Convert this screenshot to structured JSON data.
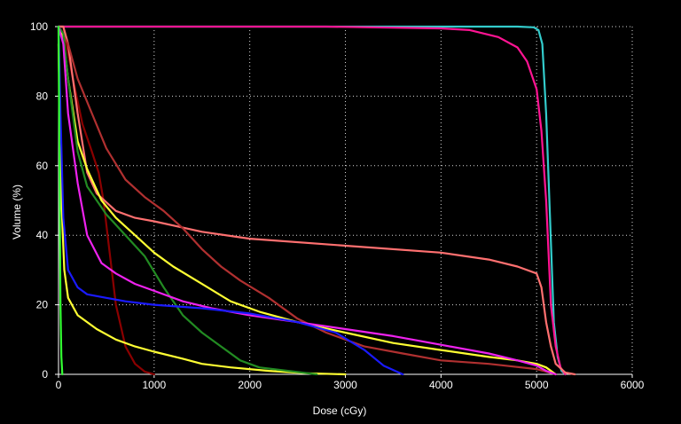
{
  "chart_data": {
    "type": "line",
    "title": "",
    "xlabel": "Dose (cGy)",
    "ylabel": "Volume (%)",
    "xlim": [
      0,
      6000
    ],
    "ylim": [
      0,
      100
    ],
    "xticks": [
      0,
      1000,
      2000,
      3000,
      4000,
      5000,
      6000
    ],
    "yticks": [
      0,
      20,
      40,
      60,
      80,
      100
    ],
    "grid": true,
    "legend": "none",
    "background": "#000000",
    "series": [
      {
        "color": "#33cccc",
        "points": [
          [
            0,
            100
          ],
          [
            4800,
            100
          ],
          [
            4970,
            99.8
          ],
          [
            5020,
            99
          ],
          [
            5060,
            95
          ],
          [
            5100,
            75
          ],
          [
            5140,
            45
          ],
          [
            5180,
            15
          ],
          [
            5220,
            5
          ],
          [
            5260,
            1
          ],
          [
            5300,
            0
          ]
        ]
      },
      {
        "color": "#8b0000",
        "points": [
          [
            0,
            100
          ],
          [
            50,
            100
          ],
          [
            150,
            85
          ],
          [
            250,
            72
          ],
          [
            350,
            64
          ],
          [
            420,
            58
          ],
          [
            470,
            50
          ],
          [
            530,
            36
          ],
          [
            600,
            20
          ],
          [
            700,
            8
          ],
          [
            800,
            3
          ],
          [
            900,
            0.8
          ],
          [
            1000,
            0
          ]
        ]
      },
      {
        "color": "#ff1493",
        "points": [
          [
            0,
            100
          ],
          [
            2800,
            100
          ],
          [
            4000,
            99.5
          ],
          [
            4300,
            99
          ],
          [
            4600,
            97
          ],
          [
            4800,
            94
          ],
          [
            4900,
            90
          ],
          [
            5000,
            82
          ],
          [
            5050,
            70
          ],
          [
            5100,
            50
          ],
          [
            5150,
            20
          ],
          [
            5200,
            8
          ],
          [
            5250,
            2
          ],
          [
            5300,
            0
          ]
        ]
      },
      {
        "color": "#ff7070",
        "points": [
          [
            0,
            100
          ],
          [
            50,
            100
          ],
          [
            100,
            95
          ],
          [
            200,
            75
          ],
          [
            300,
            58
          ],
          [
            400,
            52
          ],
          [
            600,
            47
          ],
          [
            800,
            45
          ],
          [
            1000,
            44
          ],
          [
            1500,
            41
          ],
          [
            2000,
            39
          ],
          [
            3000,
            37
          ],
          [
            4000,
            35
          ],
          [
            4500,
            33
          ],
          [
            4800,
            31
          ],
          [
            5000,
            29
          ],
          [
            5050,
            25
          ],
          [
            5100,
            15
          ],
          [
            5150,
            8
          ],
          [
            5200,
            3
          ],
          [
            5300,
            0.5
          ],
          [
            5400,
            0
          ]
        ]
      },
      {
        "color": "#b03030",
        "points": [
          [
            0,
            100
          ],
          [
            100,
            95
          ],
          [
            200,
            85
          ],
          [
            350,
            75
          ],
          [
            500,
            65
          ],
          [
            700,
            56
          ],
          [
            900,
            51
          ],
          [
            1100,
            47
          ],
          [
            1300,
            42
          ],
          [
            1500,
            36
          ],
          [
            1700,
            31
          ],
          [
            1900,
            27
          ],
          [
            2200,
            22
          ],
          [
            2500,
            16
          ],
          [
            2800,
            12
          ],
          [
            3200,
            8
          ],
          [
            3600,
            6
          ],
          [
            4000,
            4
          ],
          [
            4500,
            3
          ],
          [
            5000,
            1.5
          ],
          [
            5200,
            0
          ]
        ]
      },
      {
        "color": "#ffff33",
        "points": [
          [
            0,
            100
          ],
          [
            50,
            97
          ],
          [
            100,
            85
          ],
          [
            200,
            67
          ],
          [
            300,
            59
          ],
          [
            450,
            50
          ],
          [
            600,
            45
          ],
          [
            800,
            40
          ],
          [
            1000,
            35
          ],
          [
            1200,
            31
          ],
          [
            1500,
            26
          ],
          [
            1800,
            21
          ],
          [
            2100,
            18
          ],
          [
            2500,
            15
          ],
          [
            3000,
            12
          ],
          [
            3500,
            9
          ],
          [
            4000,
            7
          ],
          [
            4500,
            5
          ],
          [
            4800,
            4
          ],
          [
            5000,
            3
          ],
          [
            5100,
            2
          ],
          [
            5200,
            0
          ]
        ]
      },
      {
        "color": "#ffff33",
        "points": [
          [
            0,
            95
          ],
          [
            30,
            50
          ],
          [
            60,
            30
          ],
          [
            100,
            22
          ],
          [
            200,
            17
          ],
          [
            400,
            13
          ],
          [
            600,
            10
          ],
          [
            800,
            8
          ],
          [
            1000,
            6.5
          ],
          [
            1300,
            4.5
          ],
          [
            1500,
            3
          ],
          [
            1800,
            2
          ],
          [
            2200,
            1
          ],
          [
            2600,
            0.3
          ],
          [
            3000,
            0
          ]
        ]
      },
      {
        "color": "#228b22",
        "points": [
          [
            0,
            100
          ],
          [
            50,
            98
          ],
          [
            100,
            85
          ],
          [
            200,
            64
          ],
          [
            300,
            54
          ],
          [
            500,
            46
          ],
          [
            700,
            40
          ],
          [
            900,
            34
          ],
          [
            1100,
            25
          ],
          [
            1300,
            17
          ],
          [
            1500,
            12
          ],
          [
            1700,
            8
          ],
          [
            1900,
            4
          ],
          [
            2100,
            2
          ],
          [
            2400,
            1
          ],
          [
            2700,
            0
          ]
        ]
      },
      {
        "color": "#ee22ee",
        "points": [
          [
            0,
            100
          ],
          [
            50,
            95
          ],
          [
            100,
            75
          ],
          [
            200,
            55
          ],
          [
            300,
            40
          ],
          [
            450,
            32
          ],
          [
            600,
            29
          ],
          [
            800,
            26
          ],
          [
            1000,
            24
          ],
          [
            1300,
            21
          ],
          [
            1600,
            19
          ],
          [
            2000,
            17
          ],
          [
            2500,
            15
          ],
          [
            3000,
            13
          ],
          [
            3500,
            11
          ],
          [
            4000,
            8.5
          ],
          [
            4500,
            6
          ],
          [
            4800,
            4
          ],
          [
            5000,
            2.5
          ],
          [
            5100,
            1
          ],
          [
            5200,
            0
          ]
        ]
      },
      {
        "color": "#1a1aff",
        "points": [
          [
            0,
            100
          ],
          [
            20,
            75
          ],
          [
            50,
            45
          ],
          [
            100,
            30
          ],
          [
            200,
            25
          ],
          [
            300,
            23
          ],
          [
            500,
            22
          ],
          [
            700,
            21
          ],
          [
            1000,
            20
          ],
          [
            1500,
            19
          ],
          [
            2000,
            17.5
          ],
          [
            2500,
            15
          ],
          [
            2900,
            12
          ],
          [
            3200,
            7
          ],
          [
            3400,
            2.5
          ],
          [
            3600,
            0
          ]
        ]
      },
      {
        "color": "#33ff33",
        "points": [
          [
            0,
            100
          ],
          [
            10,
            60
          ],
          [
            20,
            20
          ],
          [
            30,
            5
          ],
          [
            40,
            0
          ]
        ]
      }
    ]
  }
}
